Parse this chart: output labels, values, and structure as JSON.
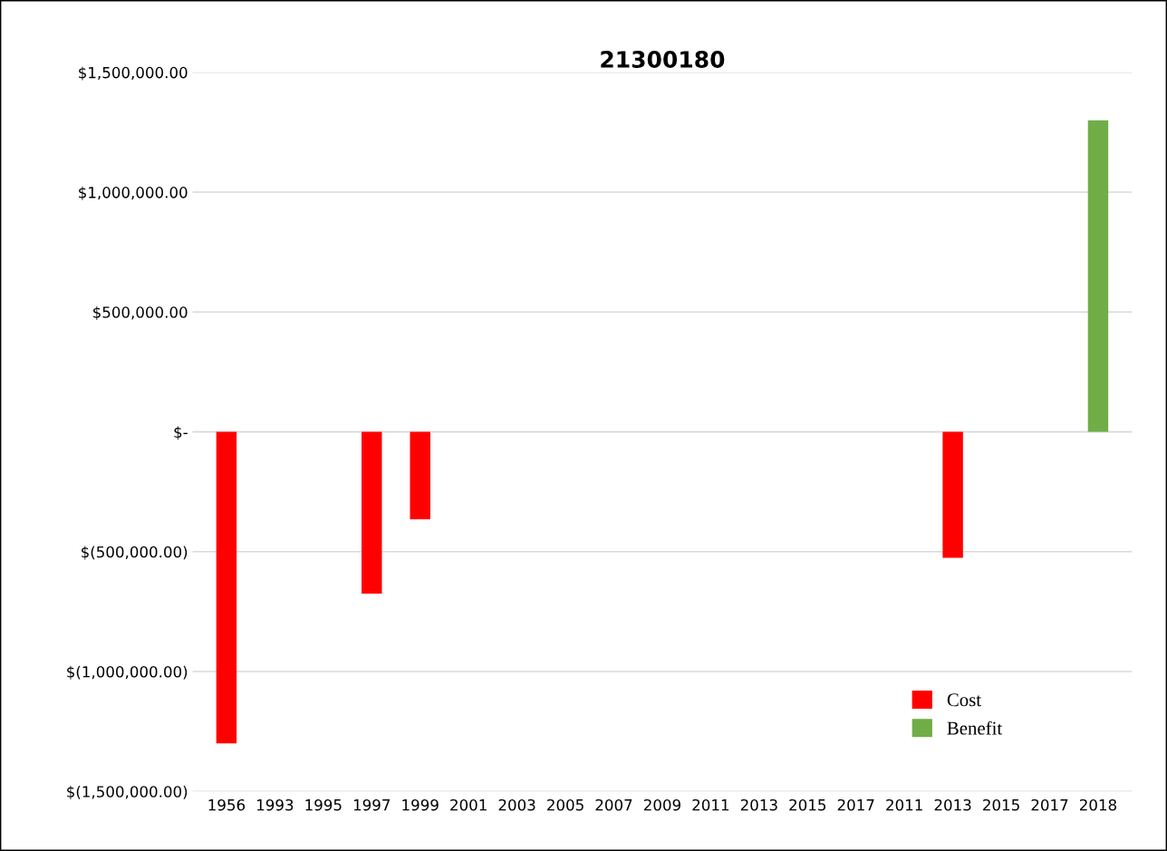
{
  "chart_data": {
    "type": "bar",
    "title": "21300180",
    "categories": [
      "1956",
      "1993",
      "1995",
      "1997",
      "1999",
      "2001",
      "2003",
      "2005",
      "2007",
      "2009",
      "2011",
      "2013",
      "2015",
      "2017",
      "2011",
      "2013",
      "2015",
      "2017",
      "2018"
    ],
    "series": [
      {
        "name": "Cost",
        "color": "#ff0000",
        "values": [
          -1300000,
          null,
          null,
          -675000,
          -365000,
          null,
          null,
          null,
          null,
          null,
          null,
          null,
          null,
          null,
          null,
          -525000,
          null,
          null,
          null
        ]
      },
      {
        "name": "Benefit",
        "color": "#70ad47",
        "values": [
          null,
          null,
          null,
          null,
          null,
          null,
          null,
          null,
          null,
          null,
          null,
          null,
          null,
          null,
          null,
          null,
          null,
          null,
          1300000
        ]
      }
    ],
    "ylim": [
      -1500000,
      1500000
    ],
    "yticks": [
      {
        "value": -1500000,
        "label": "$(1,500,000.00)"
      },
      {
        "value": -1000000,
        "label": "$(1,000,000.00)"
      },
      {
        "value": -500000,
        "label": "$(500,000.00)"
      },
      {
        "value": 0,
        "label": "$-"
      },
      {
        "value": 500000,
        "label": "$500,000.00"
      },
      {
        "value": 1000000,
        "label": "$1,000,000.00"
      },
      {
        "value": 1500000,
        "label": "$1,500,000.00"
      }
    ],
    "grid": "y",
    "legend": "bottom right"
  }
}
